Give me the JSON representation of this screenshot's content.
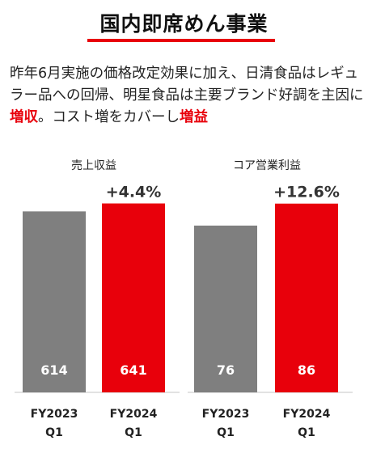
{
  "title": "国内即席めん事業",
  "description": {
    "part1": "昨年6月実施の価格改定効果に加え、日清食品はレギュラー品への回帰、明星食品は主要ブランド好調を主因に",
    "highlight1": "増収",
    "part2": "。コスト増をカバーし",
    "highlight2": "増益"
  },
  "colors": {
    "accent": "#e8000b",
    "prior": "#7f7f7f"
  },
  "chart_data": [
    {
      "type": "bar",
      "title": "売上収益",
      "categories": [
        "FY2023|Q1",
        "FY2024|Q1"
      ],
      "values": [
        614,
        641
      ],
      "growth_label": "+4.4%",
      "ylim": [
        0,
        700
      ]
    },
    {
      "type": "bar",
      "title": "コア営業利益",
      "categories": [
        "FY2023|Q1",
        "FY2024|Q1"
      ],
      "values": [
        76,
        86
      ],
      "growth_label": "+12.6%",
      "ylim": [
        0,
        94
      ]
    }
  ]
}
